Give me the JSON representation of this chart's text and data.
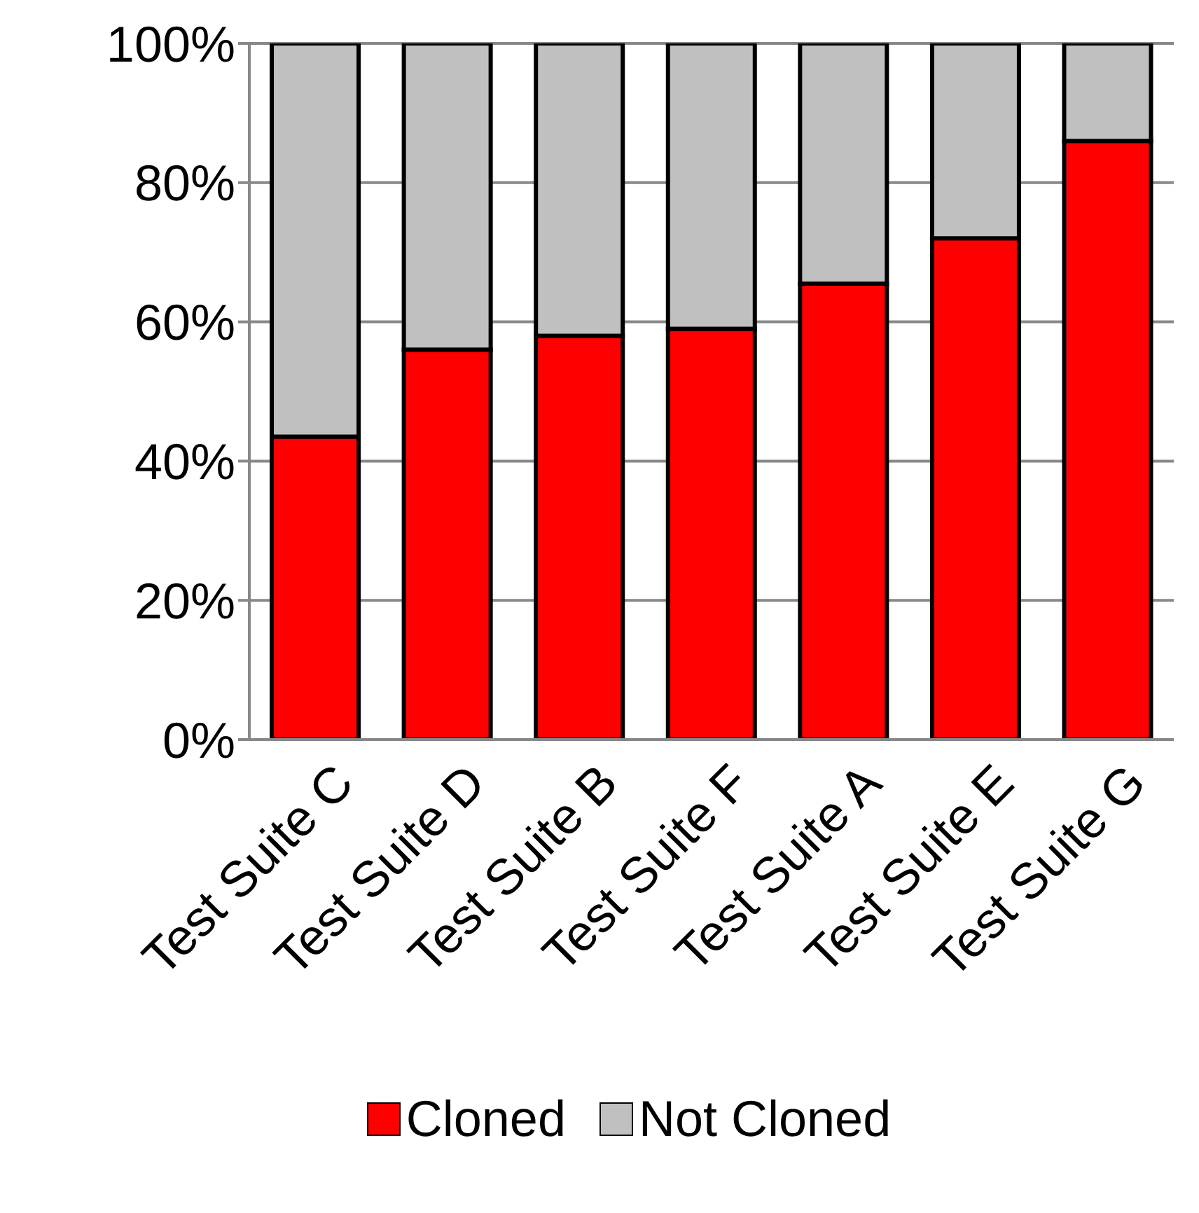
{
  "chart_data": {
    "type": "bar",
    "stacked": true,
    "categories": [
      "Test Suite C",
      "Test Suite D",
      "Test Suite B",
      "Test Suite F",
      "Test Suite A",
      "Test Suite E",
      "Test Suite G"
    ],
    "series": [
      {
        "name": "Cloned",
        "color": "#ff0000",
        "values": [
          43.5,
          56,
          58,
          59,
          65.5,
          72,
          86
        ]
      },
      {
        "name": "Not Cloned",
        "color": "#c0c0c0",
        "values": [
          56.5,
          44,
          42,
          41,
          34.5,
          28,
          14
        ]
      }
    ],
    "ylim": [
      0,
      100
    ],
    "yticks": [
      {
        "value": 0,
        "label": "0%"
      },
      {
        "value": 20,
        "label": "20%"
      },
      {
        "value": 40,
        "label": "40%"
      },
      {
        "value": 60,
        "label": "60%"
      },
      {
        "value": 80,
        "label": "80%"
      },
      {
        "value": 100,
        "label": "100%"
      }
    ],
    "grid": "y",
    "legend": "bottom"
  }
}
